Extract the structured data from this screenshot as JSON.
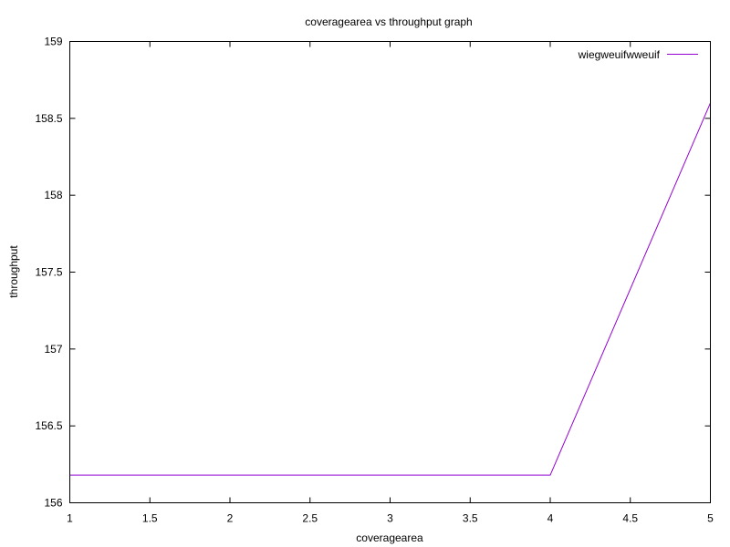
{
  "chart_data": {
    "type": "line",
    "title": "coveragearea vs throughput graph",
    "xlabel": "coveragearea",
    "ylabel": "throughput",
    "xlim": [
      1,
      5
    ],
    "ylim": [
      156,
      159
    ],
    "xticks": [
      1,
      1.5,
      2,
      2.5,
      3,
      3.5,
      4,
      4.5,
      5
    ],
    "yticks": [
      156,
      156.5,
      157,
      157.5,
      158,
      158.5,
      159
    ],
    "grid": false,
    "legend_position": "top-right",
    "series": [
      {
        "name": "wiegweuifwweuif",
        "color": "#9400d3",
        "x": [
          1,
          2,
          3,
          4,
          5
        ],
        "y": [
          156.18,
          156.18,
          156.18,
          156.18,
          158.6
        ]
      }
    ]
  }
}
